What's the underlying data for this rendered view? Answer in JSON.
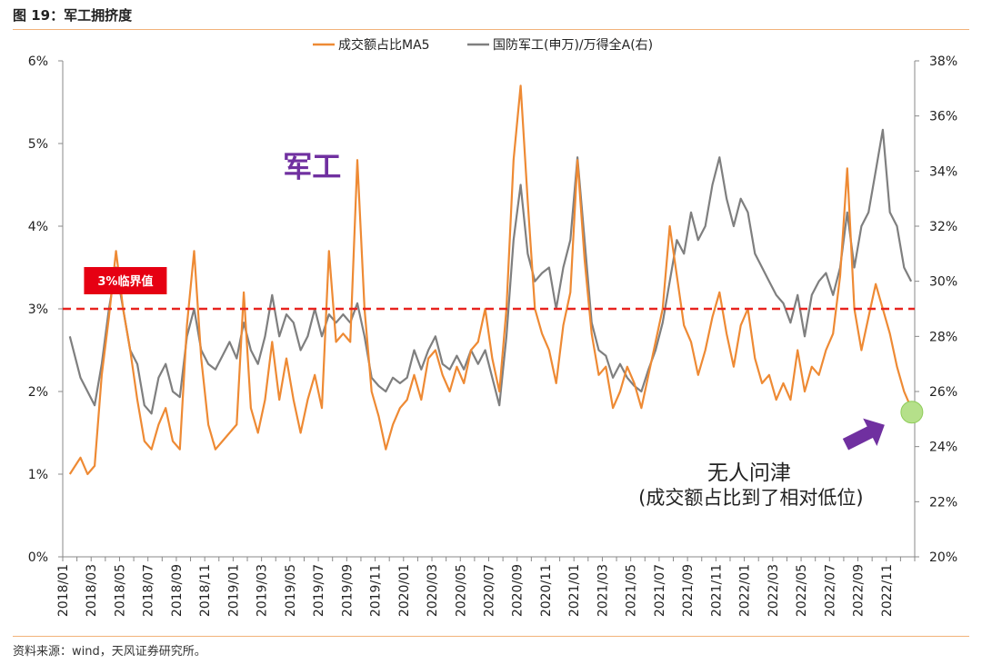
{
  "figure_title": "图 19：军工拥挤度",
  "source_note": "资料来源：wind，天风证券研究所。",
  "colors": {
    "series1": "#ee8a34",
    "series2": "#7f7f7f",
    "threshold": "#e8231f",
    "label_bg": "#e60012",
    "annotation_purple": "#7030a0",
    "marker_fill": "#b5e08a",
    "rule": "#f2b27a"
  },
  "annotations": {
    "label_junggong": "军工",
    "threshold_label": "3%临界值",
    "note_line1": "无人问津",
    "note_line2": "(成交额占比到了相对低位)"
  },
  "chart_data": {
    "type": "line",
    "title": "",
    "legend_position": "top-center",
    "grid": false,
    "x_range": [
      "2018-01",
      "2022-12"
    ],
    "x_tick_labels": [
      "2018/01",
      "2018/03",
      "2018/05",
      "2018/07",
      "2018/09",
      "2018/11",
      "2019/01",
      "2019/03",
      "2019/05",
      "2019/07",
      "2019/09",
      "2019/11",
      "2020/01",
      "2020/03",
      "2020/05",
      "2020/07",
      "2020/09",
      "2020/11",
      "2021/01",
      "2021/03",
      "2021/05",
      "2021/07",
      "2021/09",
      "2021/11",
      "2022/01",
      "2022/03",
      "2022/05",
      "2022/07",
      "2022/09",
      "2022/11"
    ],
    "y_left": {
      "ylim": [
        0,
        6
      ],
      "tick_labels": [
        "0%",
        "1%",
        "2%",
        "3%",
        "4%",
        "5%",
        "6%"
      ]
    },
    "y_right": {
      "ylim": [
        20,
        38
      ],
      "tick_labels": [
        "20%",
        "22%",
        "24%",
        "26%",
        "28%",
        "30%",
        "32%",
        "34%",
        "36%",
        "38%"
      ]
    },
    "threshold": {
      "value": 3,
      "axis": "left"
    },
    "series": [
      {
        "name": "成交额占比MA5",
        "axis": "left",
        "points": [
          [
            "2018-01",
            1.0
          ],
          [
            "2018-02",
            1.2
          ],
          [
            "2018-02",
            1.0
          ],
          [
            "2018-03",
            1.1
          ],
          [
            "2018-03",
            2.2
          ],
          [
            "2018-04",
            2.9
          ],
          [
            "2018-04",
            3.7
          ],
          [
            "2018-05",
            3.0
          ],
          [
            "2018-05",
            2.5
          ],
          [
            "2018-06",
            1.9
          ],
          [
            "2018-06",
            1.4
          ],
          [
            "2018-07",
            1.3
          ],
          [
            "2018-07",
            1.6
          ],
          [
            "2018-08",
            1.8
          ],
          [
            "2018-08",
            1.4
          ],
          [
            "2018-09",
            1.3
          ],
          [
            "2018-09",
            2.8
          ],
          [
            "2018-10",
            3.7
          ],
          [
            "2018-10",
            2.4
          ],
          [
            "2018-11",
            1.6
          ],
          [
            "2018-11",
            1.3
          ],
          [
            "2018-12",
            1.4
          ],
          [
            "2018-12",
            1.5
          ],
          [
            "2019-01",
            1.6
          ],
          [
            "2019-01",
            3.2
          ],
          [
            "2019-02",
            1.8
          ],
          [
            "2019-02",
            1.5
          ],
          [
            "2019-03",
            1.9
          ],
          [
            "2019-03",
            2.6
          ],
          [
            "2019-04",
            1.9
          ],
          [
            "2019-04",
            2.4
          ],
          [
            "2019-05",
            1.9
          ],
          [
            "2019-05",
            1.5
          ],
          [
            "2019-06",
            1.9
          ],
          [
            "2019-06",
            2.2
          ],
          [
            "2019-07",
            1.8
          ],
          [
            "2019-07",
            3.7
          ],
          [
            "2019-08",
            2.6
          ],
          [
            "2019-08",
            2.7
          ],
          [
            "2019-09",
            2.6
          ],
          [
            "2019-09",
            4.8
          ],
          [
            "2019-10",
            3.0
          ],
          [
            "2019-10",
            2.0
          ],
          [
            "2019-11",
            1.7
          ],
          [
            "2019-11",
            1.3
          ],
          [
            "2019-12",
            1.6
          ],
          [
            "2019-12",
            1.8
          ],
          [
            "2020-01",
            1.9
          ],
          [
            "2020-01",
            2.2
          ],
          [
            "2020-02",
            1.9
          ],
          [
            "2020-02",
            2.4
          ],
          [
            "2020-03",
            2.5
          ],
          [
            "2020-03",
            2.2
          ],
          [
            "2020-04",
            2.0
          ],
          [
            "2020-04",
            2.3
          ],
          [
            "2020-05",
            2.1
          ],
          [
            "2020-05",
            2.5
          ],
          [
            "2020-06",
            2.6
          ],
          [
            "2020-06",
            3.0
          ],
          [
            "2020-07",
            2.4
          ],
          [
            "2020-07",
            2.0
          ],
          [
            "2020-08",
            3.0
          ],
          [
            "2020-08",
            4.8
          ],
          [
            "2020-09",
            5.7
          ],
          [
            "2020-09",
            4.3
          ],
          [
            "2020-10",
            3.0
          ],
          [
            "2020-10",
            2.7
          ],
          [
            "2020-11",
            2.5
          ],
          [
            "2020-11",
            2.1
          ],
          [
            "2020-12",
            2.8
          ],
          [
            "2020-12",
            3.2
          ],
          [
            "2021-01",
            4.8
          ],
          [
            "2021-01",
            3.6
          ],
          [
            "2021-02",
            2.7
          ],
          [
            "2021-02",
            2.2
          ],
          [
            "2021-03",
            2.3
          ],
          [
            "2021-03",
            1.8
          ],
          [
            "2021-04",
            2.0
          ],
          [
            "2021-04",
            2.3
          ],
          [
            "2021-05",
            2.1
          ],
          [
            "2021-05",
            1.8
          ],
          [
            "2021-06",
            2.2
          ],
          [
            "2021-06",
            2.6
          ],
          [
            "2021-07",
            3.0
          ],
          [
            "2021-07",
            4.0
          ],
          [
            "2021-08",
            3.4
          ],
          [
            "2021-08",
            2.8
          ],
          [
            "2021-09",
            2.6
          ],
          [
            "2021-09",
            2.2
          ],
          [
            "2021-10",
            2.5
          ],
          [
            "2021-10",
            2.9
          ],
          [
            "2021-11",
            3.2
          ],
          [
            "2021-11",
            2.7
          ],
          [
            "2021-12",
            2.3
          ],
          [
            "2021-12",
            2.8
          ],
          [
            "2022-01",
            3.0
          ],
          [
            "2022-01",
            2.4
          ],
          [
            "2022-02",
            2.1
          ],
          [
            "2022-02",
            2.2
          ],
          [
            "2022-03",
            1.9
          ],
          [
            "2022-03",
            2.1
          ],
          [
            "2022-04",
            1.9
          ],
          [
            "2022-04",
            2.5
          ],
          [
            "2022-05",
            2.0
          ],
          [
            "2022-05",
            2.3
          ],
          [
            "2022-06",
            2.2
          ],
          [
            "2022-06",
            2.5
          ],
          [
            "2022-07",
            2.7
          ],
          [
            "2022-07",
            3.4
          ],
          [
            "2022-08",
            4.7
          ],
          [
            "2022-08",
            3.0
          ],
          [
            "2022-09",
            2.5
          ],
          [
            "2022-09",
            2.9
          ],
          [
            "2022-10",
            3.3
          ],
          [
            "2022-10",
            3.0
          ],
          [
            "2022-11",
            2.7
          ],
          [
            "2022-11",
            2.3
          ],
          [
            "2022-12",
            2.0
          ],
          [
            "2022-12",
            1.8
          ]
        ]
      },
      {
        "name": "国防军工(申万)/万得全A(右)",
        "axis": "right",
        "points": [
          [
            "2018-01",
            28.0
          ],
          [
            "2018-02",
            26.5
          ],
          [
            "2018-02",
            26.0
          ],
          [
            "2018-03",
            25.5
          ],
          [
            "2018-03",
            27.0
          ],
          [
            "2018-04",
            29.0
          ],
          [
            "2018-04",
            30.5
          ],
          [
            "2018-05",
            29.0
          ],
          [
            "2018-05",
            27.5
          ],
          [
            "2018-06",
            27.0
          ],
          [
            "2018-06",
            25.5
          ],
          [
            "2018-07",
            25.2
          ],
          [
            "2018-07",
            26.5
          ],
          [
            "2018-08",
            27.0
          ],
          [
            "2018-08",
            26.0
          ],
          [
            "2018-09",
            25.8
          ],
          [
            "2018-09",
            28.0
          ],
          [
            "2018-10",
            29.0
          ],
          [
            "2018-10",
            27.5
          ],
          [
            "2018-11",
            27.0
          ],
          [
            "2018-11",
            26.8
          ],
          [
            "2018-12",
            27.3
          ],
          [
            "2018-12",
            27.8
          ],
          [
            "2019-01",
            27.2
          ],
          [
            "2019-01",
            28.5
          ],
          [
            "2019-02",
            27.5
          ],
          [
            "2019-02",
            27.0
          ],
          [
            "2019-03",
            28.0
          ],
          [
            "2019-03",
            29.5
          ],
          [
            "2019-04",
            28.0
          ],
          [
            "2019-04",
            28.8
          ],
          [
            "2019-05",
            28.5
          ],
          [
            "2019-05",
            27.5
          ],
          [
            "2019-06",
            28.0
          ],
          [
            "2019-06",
            29.0
          ],
          [
            "2019-07",
            28.0
          ],
          [
            "2019-07",
            28.8
          ],
          [
            "2019-08",
            28.5
          ],
          [
            "2019-08",
            28.8
          ],
          [
            "2019-09",
            28.5
          ],
          [
            "2019-09",
            29.2
          ],
          [
            "2019-10",
            28.0
          ],
          [
            "2019-10",
            26.5
          ],
          [
            "2019-11",
            26.2
          ],
          [
            "2019-11",
            26.0
          ],
          [
            "2019-12",
            26.5
          ],
          [
            "2019-12",
            26.3
          ],
          [
            "2020-01",
            26.5
          ],
          [
            "2020-01",
            27.5
          ],
          [
            "2020-02",
            26.8
          ],
          [
            "2020-02",
            27.5
          ],
          [
            "2020-03",
            28.0
          ],
          [
            "2020-03",
            27.0
          ],
          [
            "2020-04",
            26.8
          ],
          [
            "2020-04",
            27.3
          ],
          [
            "2020-05",
            26.8
          ],
          [
            "2020-05",
            27.5
          ],
          [
            "2020-06",
            27.0
          ],
          [
            "2020-06",
            27.5
          ],
          [
            "2020-07",
            26.5
          ],
          [
            "2020-07",
            25.5
          ],
          [
            "2020-08",
            28.0
          ],
          [
            "2020-08",
            31.5
          ],
          [
            "2020-09",
            33.5
          ],
          [
            "2020-09",
            31.0
          ],
          [
            "2020-10",
            30.0
          ],
          [
            "2020-10",
            30.3
          ],
          [
            "2020-11",
            30.5
          ],
          [
            "2020-11",
            29.0
          ],
          [
            "2020-12",
            30.5
          ],
          [
            "2020-12",
            31.5
          ],
          [
            "2021-01",
            34.5
          ],
          [
            "2021-01",
            31.5
          ],
          [
            "2021-02",
            28.5
          ],
          [
            "2021-02",
            27.5
          ],
          [
            "2021-03",
            27.3
          ],
          [
            "2021-03",
            26.5
          ],
          [
            "2021-04",
            27.0
          ],
          [
            "2021-04",
            26.5
          ],
          [
            "2021-05",
            26.2
          ],
          [
            "2021-05",
            26.0
          ],
          [
            "2021-06",
            26.8
          ],
          [
            "2021-06",
            27.5
          ],
          [
            "2021-07",
            28.5
          ],
          [
            "2021-07",
            30.0
          ],
          [
            "2021-08",
            31.5
          ],
          [
            "2021-08",
            31.0
          ],
          [
            "2021-09",
            32.5
          ],
          [
            "2021-09",
            31.5
          ],
          [
            "2021-10",
            32.0
          ],
          [
            "2021-10",
            33.5
          ],
          [
            "2021-11",
            34.5
          ],
          [
            "2021-11",
            33.0
          ],
          [
            "2021-12",
            32.0
          ],
          [
            "2021-12",
            33.0
          ],
          [
            "2022-01",
            32.5
          ],
          [
            "2022-01",
            31.0
          ],
          [
            "2022-02",
            30.5
          ],
          [
            "2022-02",
            30.0
          ],
          [
            "2022-03",
            29.5
          ],
          [
            "2022-03",
            29.2
          ],
          [
            "2022-04",
            28.5
          ],
          [
            "2022-04",
            29.5
          ],
          [
            "2022-05",
            28.0
          ],
          [
            "2022-05",
            29.5
          ],
          [
            "2022-06",
            30.0
          ],
          [
            "2022-06",
            30.3
          ],
          [
            "2022-07",
            29.5
          ],
          [
            "2022-07",
            30.5
          ],
          [
            "2022-08",
            32.5
          ],
          [
            "2022-08",
            30.5
          ],
          [
            "2022-09",
            32.0
          ],
          [
            "2022-09",
            32.5
          ],
          [
            "2022-10",
            34.0
          ],
          [
            "2022-10",
            35.5
          ],
          [
            "2022-11",
            32.5
          ],
          [
            "2022-11",
            32.0
          ],
          [
            "2022-12",
            30.5
          ],
          [
            "2022-12",
            30.0
          ]
        ]
      }
    ],
    "end_marker": {
      "date": "2022-12",
      "value": 1.75,
      "axis": "left"
    }
  }
}
